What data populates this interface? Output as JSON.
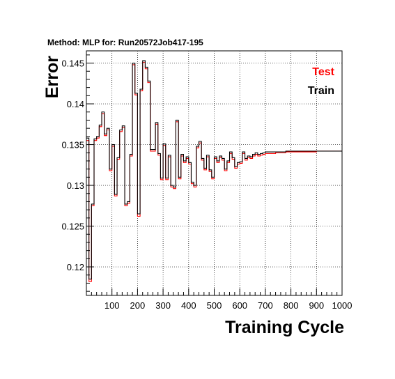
{
  "chart_data": {
    "type": "line",
    "title": "Method: MLP for: Run20572Job417-195",
    "xlabel": "Training Cycle",
    "ylabel": "Error",
    "xlim": [
      0,
      1000
    ],
    "ylim": [
      0.1165,
      0.1465
    ],
    "x_ticks": [
      100,
      200,
      300,
      400,
      500,
      600,
      700,
      800,
      900,
      1000
    ],
    "y_ticks": [
      0.12,
      0.125,
      0.13,
      0.135,
      0.14,
      0.145
    ],
    "y_tick_labels": [
      "0.12",
      "0.125",
      "0.13",
      "0.135",
      "0.14",
      "0.145"
    ],
    "grid": true,
    "legend_position": "top-right",
    "series": [
      {
        "name": "Test",
        "color": "#ff0000",
        "x": [
          0,
          10,
          20,
          30,
          40,
          50,
          60,
          70,
          80,
          90,
          100,
          110,
          120,
          130,
          140,
          150,
          160,
          170,
          180,
          190,
          200,
          210,
          220,
          230,
          240,
          250,
          260,
          270,
          280,
          290,
          300,
          310,
          320,
          330,
          340,
          350,
          360,
          370,
          380,
          390,
          400,
          410,
          420,
          430,
          440,
          450,
          460,
          470,
          480,
          490,
          500,
          510,
          520,
          530,
          540,
          550,
          560,
          570,
          580,
          590,
          600,
          610,
          620,
          630,
          640,
          650,
          660,
          670,
          680,
          690,
          700,
          720,
          740,
          760,
          780,
          800,
          850,
          900,
          950,
          1000
        ],
        "y": [
          0.1355,
          0.1182,
          0.1275,
          0.1355,
          0.1358,
          0.1372,
          0.1388,
          0.1361,
          0.1368,
          0.1318,
          0.1348,
          0.1287,
          0.1332,
          0.1366,
          0.1371,
          0.1275,
          0.1278,
          0.1336,
          0.1448,
          0.1411,
          0.1262,
          0.1416,
          0.1451,
          0.1443,
          0.1426,
          0.1342,
          0.1342,
          0.1375,
          0.1337,
          0.1307,
          0.1349,
          0.1307,
          0.1335,
          0.1298,
          0.1296,
          0.1378,
          0.1308,
          0.1336,
          0.1328,
          0.1333,
          0.1326,
          0.1302,
          0.1298,
          0.1346,
          0.1352,
          0.1331,
          0.1319,
          0.1335,
          0.1317,
          0.1308,
          0.1333,
          0.1328,
          0.1334,
          0.1331,
          0.1318,
          0.1328,
          0.1339,
          0.1332,
          0.1321,
          0.1326,
          0.1327,
          0.1339,
          0.1331,
          0.1334,
          0.1333,
          0.1336,
          0.1338,
          0.1336,
          0.1337,
          0.1338,
          0.1339,
          0.1339,
          0.134,
          0.134,
          0.1341,
          0.1341,
          0.1341,
          0.1342,
          0.1342,
          0.1342
        ]
      },
      {
        "name": "Train",
        "color": "#000000",
        "x": [
          0,
          10,
          20,
          30,
          40,
          50,
          60,
          70,
          80,
          90,
          100,
          110,
          120,
          130,
          140,
          150,
          160,
          170,
          180,
          190,
          200,
          210,
          220,
          230,
          240,
          250,
          260,
          270,
          280,
          290,
          300,
          310,
          320,
          330,
          340,
          350,
          360,
          370,
          380,
          390,
          400,
          410,
          420,
          430,
          440,
          450,
          460,
          470,
          480,
          490,
          500,
          510,
          520,
          530,
          540,
          550,
          560,
          570,
          580,
          590,
          600,
          610,
          620,
          630,
          640,
          650,
          660,
          670,
          680,
          690,
          700,
          720,
          740,
          760,
          780,
          800,
          850,
          900,
          950,
          1000
        ],
        "y": [
          0.1358,
          0.1185,
          0.1277,
          0.1357,
          0.136,
          0.1374,
          0.139,
          0.1363,
          0.137,
          0.132,
          0.135,
          0.1289,
          0.1334,
          0.1368,
          0.1373,
          0.1277,
          0.128,
          0.1338,
          0.145,
          0.1413,
          0.1265,
          0.1418,
          0.1453,
          0.1445,
          0.1428,
          0.1344,
          0.1344,
          0.1377,
          0.1339,
          0.1309,
          0.1351,
          0.1309,
          0.1337,
          0.13,
          0.1298,
          0.138,
          0.131,
          0.1338,
          0.133,
          0.1335,
          0.1328,
          0.1304,
          0.13,
          0.1348,
          0.1354,
          0.1333,
          0.1321,
          0.1337,
          0.1319,
          0.131,
          0.1335,
          0.133,
          0.1336,
          0.1333,
          0.132,
          0.133,
          0.1341,
          0.1334,
          0.1323,
          0.1328,
          0.1329,
          0.1341,
          0.1333,
          0.1336,
          0.1335,
          0.1338,
          0.134,
          0.1338,
          0.1339,
          0.134,
          0.1341,
          0.1341,
          0.1341,
          0.1341,
          0.1342,
          0.1342,
          0.1342,
          0.1342,
          0.1342,
          0.1342
        ]
      }
    ]
  }
}
